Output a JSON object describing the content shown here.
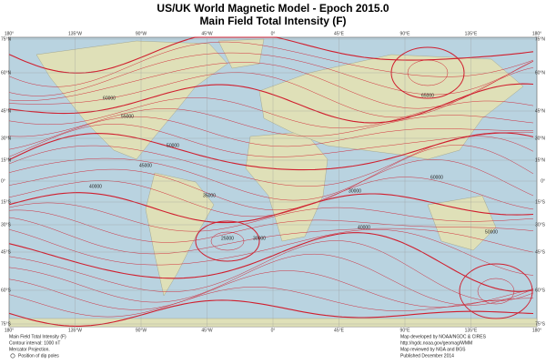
{
  "header": {
    "title": "US/UK World Magnetic Model - Epoch 2015.0",
    "subtitle": "Main Field Total Intensity (F)"
  },
  "map": {
    "longitude_labels": [
      "180°",
      "135°W",
      "90°W",
      "45°W",
      "0°",
      "45°E",
      "90°E",
      "135°E",
      "180°"
    ],
    "latitude_labels": [
      "75°N",
      "60°N",
      "45°N",
      "30°N",
      "15°N",
      "0°",
      "15°S",
      "30°S",
      "45°S",
      "60°S",
      "75°S"
    ],
    "contour_labels": [
      "60000",
      "55000",
      "50000",
      "45000",
      "40000",
      "35000",
      "30000",
      "25000",
      "30000",
      "40000",
      "50000",
      "60000",
      "65000"
    ]
  },
  "footer": {
    "left": [
      "Main Field Total Intensity (F)",
      "Contour interval: 1000 nT",
      "Mercator Projection.",
      "Position of dip poles"
    ],
    "right": [
      "Map developed by NOAA/NGDC & CIRES",
      "http://ngdc.noaa.gov/geomag/WMM",
      "Map reviewed by NGA and BGS",
      "Published December 2014"
    ]
  }
}
